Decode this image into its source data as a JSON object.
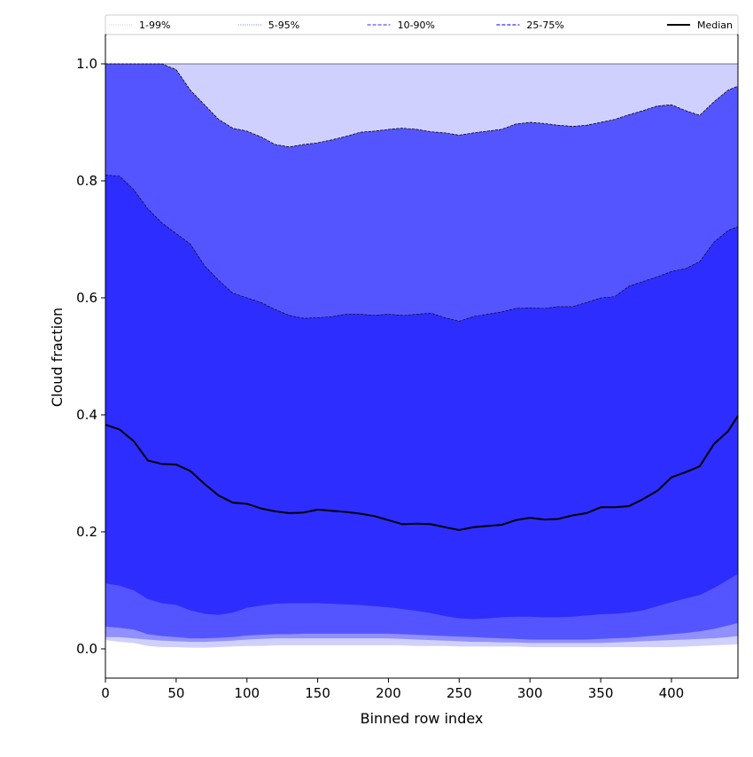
{
  "chart_data": {
    "type": "area",
    "title": "",
    "xlabel": "Binned row index",
    "ylabel": "Cloud fraction",
    "xlim": [
      0,
      447
    ],
    "ylim": [
      -0.05,
      1.05
    ],
    "grid": false,
    "legend_position": "top",
    "xticks": [
      0,
      50,
      100,
      150,
      200,
      250,
      300,
      350,
      400
    ],
    "yticks": [
      0.0,
      0.2,
      0.4,
      0.6,
      0.8,
      1.0
    ],
    "x": [
      0,
      10,
      20,
      30,
      40,
      50,
      60,
      70,
      80,
      90,
      100,
      110,
      120,
      130,
      140,
      150,
      160,
      170,
      180,
      190,
      200,
      210,
      220,
      230,
      240,
      250,
      260,
      270,
      280,
      290,
      300,
      310,
      320,
      330,
      340,
      350,
      360,
      370,
      380,
      390,
      400,
      410,
      420,
      430,
      440,
      447
    ],
    "bands": [
      {
        "name": "1-99%",
        "lower": [
          0.015,
          0.012,
          0.01,
          0.005,
          0.003,
          0.003,
          0.002,
          0.002,
          0.003,
          0.004,
          0.005,
          0.005,
          0.006,
          0.006,
          0.006,
          0.006,
          0.006,
          0.006,
          0.006,
          0.006,
          0.006,
          0.006,
          0.005,
          0.005,
          0.005,
          0.004,
          0.004,
          0.004,
          0.004,
          0.004,
          0.003,
          0.003,
          0.003,
          0.003,
          0.003,
          0.003,
          0.003,
          0.003,
          0.003,
          0.003,
          0.003,
          0.004,
          0.005,
          0.006,
          0.007,
          0.008
        ],
        "upper": [
          1.0,
          1.0,
          1.0,
          1.0,
          1.0,
          1.0,
          1.0,
          1.0,
          1.0,
          1.0,
          1.0,
          1.0,
          1.0,
          1.0,
          1.0,
          1.0,
          1.0,
          1.0,
          1.0,
          1.0,
          1.0,
          1.0,
          1.0,
          1.0,
          1.0,
          1.0,
          1.0,
          1.0,
          1.0,
          1.0,
          1.0,
          1.0,
          1.0,
          1.0,
          1.0,
          1.0,
          1.0,
          1.0,
          1.0,
          1.0,
          1.0,
          1.0,
          1.0,
          1.0,
          1.0,
          1.0
        ],
        "color": "#d0d0ff"
      },
      {
        "name": "5-95%",
        "lower": [
          0.02,
          0.02,
          0.018,
          0.016,
          0.014,
          0.013,
          0.012,
          0.012,
          0.013,
          0.014,
          0.016,
          0.017,
          0.018,
          0.018,
          0.018,
          0.018,
          0.018,
          0.018,
          0.018,
          0.018,
          0.018,
          0.017,
          0.016,
          0.015,
          0.014,
          0.013,
          0.012,
          0.012,
          0.011,
          0.011,
          0.01,
          0.01,
          0.01,
          0.01,
          0.01,
          0.01,
          0.011,
          0.012,
          0.013,
          0.014,
          0.015,
          0.016,
          0.017,
          0.018,
          0.02,
          0.022
        ],
        "upper": [
          1.0,
          1.0,
          1.0,
          1.0,
          1.0,
          0.99,
          0.955,
          0.93,
          0.905,
          0.89,
          0.885,
          0.875,
          0.862,
          0.858,
          0.862,
          0.865,
          0.87,
          0.876,
          0.883,
          0.885,
          0.888,
          0.89,
          0.888,
          0.884,
          0.882,
          0.878,
          0.882,
          0.885,
          0.888,
          0.897,
          0.9,
          0.898,
          0.895,
          0.893,
          0.895,
          0.9,
          0.905,
          0.913,
          0.92,
          0.928,
          0.93,
          0.92,
          0.912,
          0.935,
          0.955,
          0.962
        ],
        "color": "#9090ff"
      },
      {
        "name": "10-90%",
        "lower": [
          0.038,
          0.036,
          0.033,
          0.025,
          0.022,
          0.02,
          0.018,
          0.018,
          0.019,
          0.02,
          0.023,
          0.024,
          0.025,
          0.025,
          0.026,
          0.026,
          0.026,
          0.026,
          0.026,
          0.026,
          0.026,
          0.025,
          0.024,
          0.023,
          0.022,
          0.021,
          0.02,
          0.019,
          0.018,
          0.017,
          0.016,
          0.016,
          0.016,
          0.016,
          0.016,
          0.017,
          0.018,
          0.019,
          0.021,
          0.023,
          0.025,
          0.027,
          0.03,
          0.034,
          0.04,
          0.044
        ],
        "upper": [
          1.0,
          1.0,
          1.0,
          1.0,
          1.0,
          0.99,
          0.955,
          0.93,
          0.905,
          0.89,
          0.885,
          0.875,
          0.862,
          0.858,
          0.862,
          0.865,
          0.87,
          0.876,
          0.883,
          0.885,
          0.888,
          0.89,
          0.888,
          0.884,
          0.882,
          0.878,
          0.882,
          0.885,
          0.888,
          0.897,
          0.9,
          0.898,
          0.895,
          0.893,
          0.895,
          0.9,
          0.905,
          0.913,
          0.92,
          0.928,
          0.93,
          0.92,
          0.912,
          0.935,
          0.955,
          0.962
        ],
        "color": "#5555ff"
      },
      {
        "name": "25-75%",
        "lower": [
          0.112,
          0.108,
          0.1,
          0.085,
          0.078,
          0.075,
          0.066,
          0.06,
          0.058,
          0.062,
          0.07,
          0.074,
          0.077,
          0.078,
          0.078,
          0.078,
          0.077,
          0.076,
          0.075,
          0.073,
          0.071,
          0.068,
          0.065,
          0.061,
          0.056,
          0.052,
          0.051,
          0.052,
          0.054,
          0.055,
          0.055,
          0.054,
          0.054,
          0.055,
          0.057,
          0.059,
          0.06,
          0.062,
          0.066,
          0.073,
          0.08,
          0.086,
          0.092,
          0.104,
          0.118,
          0.128
        ],
        "upper": [
          0.81,
          0.808,
          0.785,
          0.752,
          0.728,
          0.71,
          0.692,
          0.655,
          0.63,
          0.608,
          0.6,
          0.592,
          0.58,
          0.57,
          0.565,
          0.566,
          0.568,
          0.572,
          0.572,
          0.57,
          0.572,
          0.57,
          0.572,
          0.574,
          0.566,
          0.56,
          0.568,
          0.572,
          0.576,
          0.582,
          0.583,
          0.582,
          0.585,
          0.585,
          0.592,
          0.6,
          0.602,
          0.62,
          0.628,
          0.636,
          0.645,
          0.65,
          0.662,
          0.695,
          0.715,
          0.722
        ],
        "color": "#2d2dff"
      }
    ],
    "median": {
      "name": "Median",
      "values": [
        0.383,
        0.375,
        0.355,
        0.322,
        0.316,
        0.315,
        0.304,
        0.282,
        0.262,
        0.25,
        0.248,
        0.24,
        0.235,
        0.232,
        0.233,
        0.238,
        0.236,
        0.234,
        0.231,
        0.227,
        0.22,
        0.213,
        0.214,
        0.213,
        0.208,
        0.203,
        0.208,
        0.21,
        0.212,
        0.22,
        0.224,
        0.221,
        0.222,
        0.228,
        0.232,
        0.242,
        0.242,
        0.244,
        0.256,
        0.27,
        0.293,
        0.302,
        0.312,
        0.35,
        0.372,
        0.398
      ],
      "color": "#000000"
    },
    "legend": [
      {
        "label": "1-99%",
        "color": "#d0d0ff",
        "style": "dotted"
      },
      {
        "label": "5-95%",
        "color": "#9090ff",
        "style": "dotted"
      },
      {
        "label": "10-90%",
        "color": "#5555ff",
        "style": "dashed"
      },
      {
        "label": "25-75%",
        "color": "#2d2dff",
        "style": "dashed"
      },
      {
        "label": "Median",
        "color": "#000000",
        "style": "solid"
      }
    ]
  }
}
